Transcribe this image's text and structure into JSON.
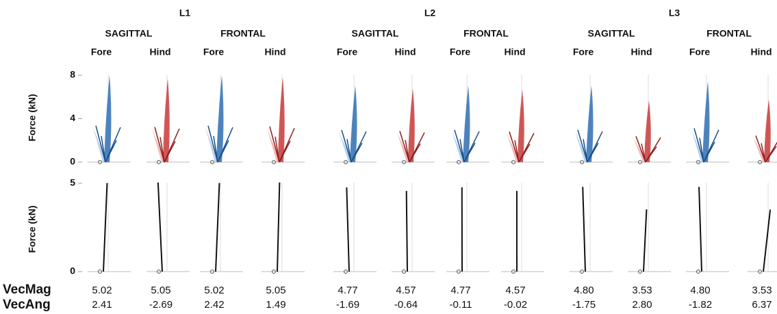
{
  "groups": [
    {
      "label": "L1",
      "planes": [
        {
          "label": "SAGITTAL",
          "limbs": [
            {
              "label": "Fore",
              "vec_mag": 5.02,
              "vec_ang": 2.41
            },
            {
              "label": "Hind",
              "vec_mag": 5.05,
              "vec_ang": -2.69
            }
          ]
        },
        {
          "label": "FRONTAL",
          "limbs": [
            {
              "label": "Fore",
              "vec_mag": 5.02,
              "vec_ang": 2.42
            },
            {
              "label": "Hind",
              "vec_mag": 5.05,
              "vec_ang": 1.49
            }
          ]
        }
      ]
    },
    {
      "label": "L2",
      "planes": [
        {
          "label": "SAGITTAL",
          "limbs": [
            {
              "label": "Fore",
              "vec_mag": 4.77,
              "vec_ang": -1.69
            },
            {
              "label": "Hind",
              "vec_mag": 4.57,
              "vec_ang": -0.64
            }
          ]
        },
        {
          "label": "FRONTAL",
          "limbs": [
            {
              "label": "Fore",
              "vec_mag": 4.77,
              "vec_ang": -0.11
            },
            {
              "label": "Hind",
              "vec_mag": 4.57,
              "vec_ang": -0.02
            }
          ]
        }
      ]
    },
    {
      "label": "L3",
      "planes": [
        {
          "label": "SAGITTAL",
          "limbs": [
            {
              "label": "Fore",
              "vec_mag": {
                "value": 4.8,
                "label": "4.80"
              },
              "vec_ang": -1.75
            },
            {
              "label": "Hind",
              "vec_mag": 3.53,
              "vec_ang": {
                "value": 2.8,
                "label": "2.80"
              }
            }
          ]
        },
        {
          "label": "FRONTAL",
          "limbs": [
            {
              "label": "Fore",
              "vec_mag": {
                "value": 4.8,
                "label": "4.80"
              },
              "vec_ang": -1.82
            },
            {
              "label": "Hind",
              "vec_mag": 3.53,
              "vec_ang": 6.37
            }
          ]
        }
      ]
    }
  ],
  "top_axis": {
    "label": "Force (kN)",
    "ylim": [
      0,
      8
    ],
    "yticks": [
      0,
      4,
      8
    ]
  },
  "bottom_axis": {
    "label": "Force (kN)",
    "ylim": [
      0,
      5
    ],
    "yticks": [
      0,
      5
    ]
  },
  "row_labels": [
    "VecMag",
    "VecAng"
  ]
}
